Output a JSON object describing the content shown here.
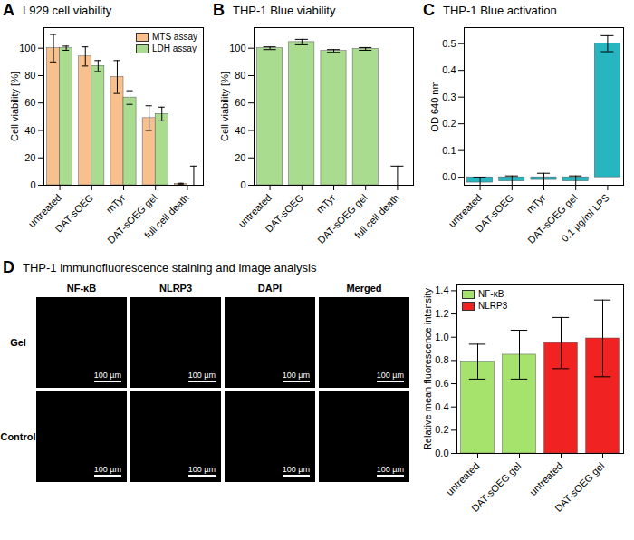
{
  "chart_data": [
    {
      "panel": "A",
      "type": "bar",
      "title": "L929 cell viability",
      "y_label": "Cell viability [%]",
      "categories": [
        "untreated",
        "DAT-sOEG",
        "mTyr",
        "DAT-sOEG gel",
        "full cell death"
      ],
      "series": [
        {
          "name": "MTS assay",
          "color": "#f8c08c",
          "values": [
            100,
            94,
            79,
            49,
            1
          ],
          "errors": [
            10,
            7,
            12,
            9,
            0.5
          ]
        },
        {
          "name": "LDH assay",
          "color": "#a9dc8f",
          "values": [
            100,
            87,
            64,
            52,
            0
          ],
          "errors": [
            1.5,
            4,
            5,
            5,
            14
          ]
        }
      ],
      "ylim": [
        0,
        115
      ],
      "yticks": [
        0,
        20,
        40,
        60,
        80,
        100
      ],
      "legend": "top-right"
    },
    {
      "panel": "B",
      "type": "bar",
      "title": "THP-1 Blue viability",
      "y_label": "Cell viability [%]",
      "categories": [
        "untreated",
        "DAT-sOEG",
        "mTyr",
        "DAT-sOEG gel",
        "full cell death"
      ],
      "series": [
        {
          "name": "THP-1 Blue viability",
          "color": "#a9dc8f",
          "values": [
            100,
            104.5,
            98,
            99.5,
            0
          ],
          "errors": [
            1,
            2,
            1,
            1,
            14
          ]
        }
      ],
      "ylim": [
        0,
        115
      ],
      "yticks": [
        0,
        20,
        40,
        60,
        80,
        100
      ]
    },
    {
      "panel": "C",
      "type": "bar",
      "title": "THP-1 Blue activation",
      "y_label": "OD 640 nm",
      "categories": [
        "untreated",
        "DAT-sOEG",
        "mTyr",
        "DAT-sOEG gel",
        "0.1 µg/ml LPS"
      ],
      "series": [
        {
          "name": "THP-1 Blue activation",
          "color": "#27b5bf",
          "values": [
            -0.02,
            -0.015,
            -0.01,
            -0.015,
            0.5
          ],
          "errors": [
            0.02,
            0.02,
            0.025,
            0.02,
            0.03
          ]
        }
      ],
      "ylim": [
        -0.03,
        0.56
      ],
      "yticks": [
        {
          "value": 0,
          "label": "0.0"
        },
        {
          "value": 0.1,
          "label": "0.1"
        },
        {
          "value": 0.2,
          "label": "0.2"
        },
        {
          "value": 0.3,
          "label": "0.3"
        },
        {
          "value": 0.4,
          "label": "0.4"
        },
        {
          "value": 0.5,
          "label": "0.5"
        }
      ]
    },
    {
      "type": "bar",
      "y_label": "Relative mean fluorescence intensity",
      "categories": [
        "untreated",
        "DAT-sOEG gel",
        "untreated",
        "DAT-sOEG gel"
      ],
      "series": [
        {
          "name": "NF-κB",
          "color": "#a6e36c",
          "values": [
            0.79,
            0.85,
            null,
            null
          ],
          "errors": [
            0.15,
            0.21,
            null,
            null
          ]
        },
        {
          "name": "NLRP3",
          "color": "#f02222",
          "values": [
            null,
            null,
            0.95,
            0.99
          ],
          "errors": [
            null,
            null,
            0.22,
            0.33
          ]
        }
      ],
      "ylim": [
        0,
        1.45
      ],
      "yticks": [
        {
          "value": 0,
          "label": "0.0"
        },
        {
          "value": 0.2,
          "label": "0.2"
        },
        {
          "value": 0.4,
          "label": "0.4"
        },
        {
          "value": 0.6,
          "label": "0.6"
        },
        {
          "value": 0.8,
          "label": "0.8"
        },
        {
          "value": 1,
          "label": "1.0"
        },
        {
          "value": 1.2,
          "label": "1.2"
        },
        {
          "value": 1.4,
          "label": "1.4"
        }
      ],
      "legend": "top-left"
    }
  ],
  "micrographs": {
    "panel": "D",
    "title": "THP-1 immunofluorescence staining and image analysis",
    "columns": [
      "NF-κB",
      "NLRP3",
      "DAPI",
      "Merged"
    ],
    "rows": [
      "Gel",
      "Control"
    ],
    "scale_bar": "100 µm"
  }
}
